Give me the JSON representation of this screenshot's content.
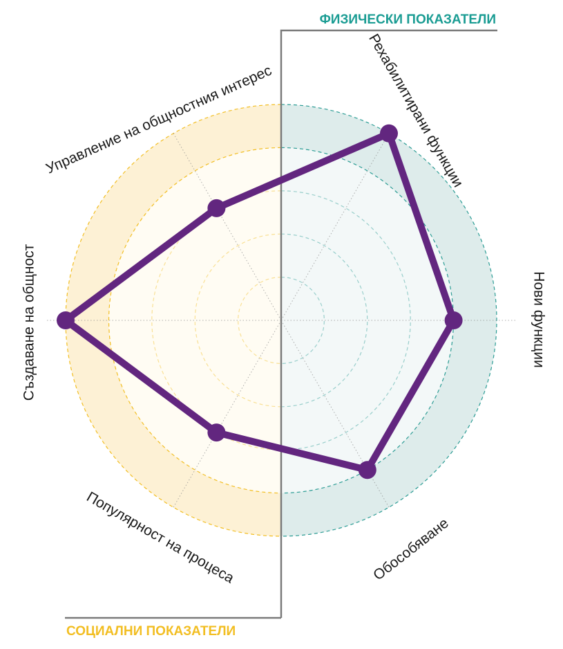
{
  "chart_data": {
    "type": "radar",
    "categories": [
      "Рехабилитирани функции",
      "Нови функции",
      "Обособяване",
      "Популярност на процеса",
      "Създаване на общност",
      "Управление на общностния интерес"
    ],
    "series": [
      {
        "values": [
          5,
          4,
          4,
          3,
          5,
          3
        ]
      }
    ],
    "rlim": [
      0,
      5
    ],
    "rings": 5,
    "groups": [
      {
        "label": "ФИЗИЧЕСКИ ПОКАЗАТЕЛИ",
        "side": "right",
        "color": "#1a9c93"
      },
      {
        "label": "СОЦИАЛНИ ПОКАЗАТЕЛИ",
        "side": "left",
        "color": "#f2be22"
      }
    ],
    "colors": {
      "series": "#62267f",
      "right_fill": "#deeceb",
      "left_fill": "#fdf1d5",
      "right_ring": "#2b9c94",
      "left_ring": "#f2be22",
      "frame": "#7a7a7a"
    }
  }
}
